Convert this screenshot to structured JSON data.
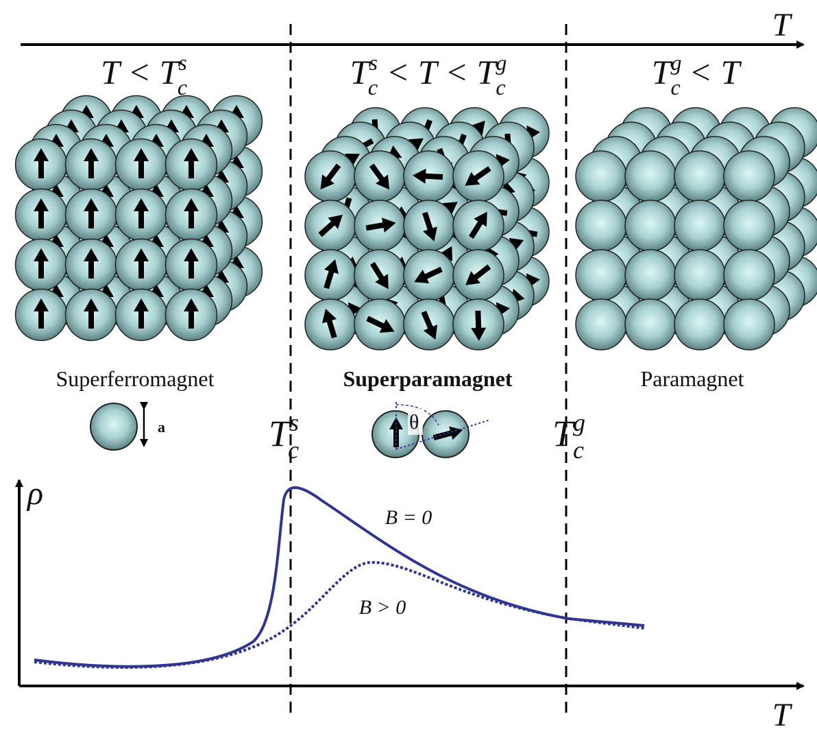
{
  "axis_top": {
    "label": "T"
  },
  "regions": [
    {
      "condition": [
        "T <",
        {
          "base": "T",
          "sup": "s",
          "sub": "c"
        }
      ],
      "name": "Superferromagnet"
    },
    {
      "condition": [
        {
          "base": "T",
          "sup": "s",
          "sub": "c"
        },
        "< T <",
        {
          "base": "T",
          "sup": "g",
          "sub": "c"
        }
      ],
      "name": "Superparamagnet"
    },
    {
      "condition": [
        {
          "base": "T",
          "sup": "g",
          "sub": "c"
        },
        "< T"
      ],
      "name": "Paramagnet"
    }
  ],
  "particle_size": "a",
  "transitions": [
    {
      "base": "T",
      "sup": "s",
      "sub": "c"
    },
    {
      "base": "T",
      "sup": "g",
      "sub": "c"
    }
  ],
  "angle": "θ",
  "plot": {
    "y_label": "ρ",
    "x_label": "T",
    "curves": [
      {
        "label": "B = 0"
      },
      {
        "label": "B > 0"
      }
    ]
  }
}
